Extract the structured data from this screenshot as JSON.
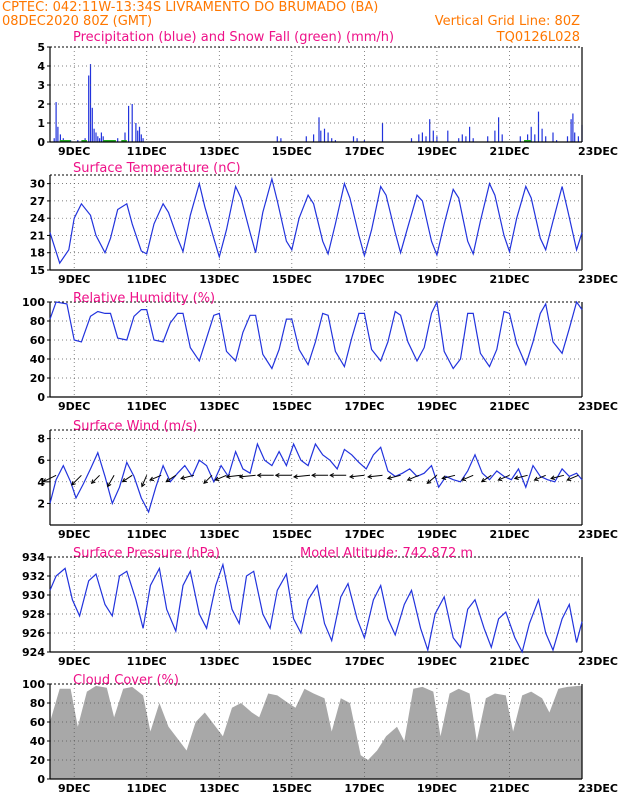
{
  "header": {
    "line1_left": "CPTEC:   042:11W-13:34S  LIVRAMENTO DO BRUMADO (BA)",
    "line2_left": "08DEC2020 80Z (GMT)",
    "line2_right": "Vertical Grid Line: 80Z",
    "line3_right": "TQ0126L028"
  },
  "x_axis": {
    "start_day": 8.333,
    "end_day": 23,
    "tick_days": [
      9,
      11,
      13,
      15,
      17,
      19,
      21,
      23
    ],
    "tick_labels": [
      "9DEC",
      "11DEC",
      "13DEC",
      "15DEC",
      "17DEC",
      "19DEC",
      "21DEC",
      "23DEC"
    ]
  },
  "colors": {
    "series": "#2233dd",
    "snow": "#22aa22",
    "cloud": "#a8a8a8",
    "title": "#ee1188",
    "header": "#ff7700"
  },
  "chart_data": [
    {
      "id": "precip",
      "type": "bar",
      "title": "Precipitation (blue) and Snow Fall (green) (mm/h)",
      "ylim": [
        0,
        5
      ],
      "yticks": [
        0,
        1,
        2,
        3,
        4,
        5
      ],
      "bar_width_days": 0.09,
      "x": [
        8.45,
        8.5,
        8.55,
        8.62,
        8.7,
        8.8,
        8.9,
        9.1,
        9.3,
        9.4,
        9.45,
        9.5,
        9.55,
        9.6,
        9.65,
        9.7,
        9.75,
        9.8,
        9.9,
        10.2,
        10.4,
        10.5,
        10.6,
        10.7,
        10.75,
        10.8,
        10.85,
        10.9,
        14.6,
        14.7,
        15.4,
        15.6,
        15.75,
        15.8,
        15.9,
        16.0,
        16.1,
        16.2,
        16.7,
        16.8,
        17.0,
        17.5,
        18.3,
        18.5,
        18.6,
        18.7,
        18.8,
        18.9,
        19.0,
        19.3,
        19.6,
        19.7,
        19.8,
        19.9,
        20.0,
        20.4,
        20.6,
        20.7,
        20.8,
        21.3,
        21.5,
        21.6,
        21.7,
        21.8,
        21.9,
        22.0,
        22.2,
        22.3,
        22.6,
        22.7,
        22.75,
        22.8,
        22.9,
        23.0
      ],
      "values": [
        0.2,
        2.1,
        0.8,
        0.4,
        0.2,
        0.1,
        0.1,
        0.1,
        0.2,
        3.5,
        4.1,
        1.8,
        0.7,
        0.5,
        0.3,
        0.2,
        0.5,
        0.3,
        0.1,
        0.2,
        0.5,
        1.9,
        2.0,
        1.0,
        0.6,
        0.8,
        0.4,
        0.2,
        0.3,
        0.2,
        0.3,
        0.4,
        1.3,
        0.6,
        0.7,
        0.5,
        0.2,
        0.1,
        0.3,
        0.2,
        0.1,
        1.0,
        0.2,
        0.4,
        0.5,
        0.3,
        1.2,
        0.6,
        0.3,
        0.6,
        0.2,
        0.4,
        0.3,
        0.8,
        0.2,
        0.3,
        0.6,
        1.3,
        0.4,
        0.3,
        0.4,
        0.8,
        0.4,
        1.6,
        0.7,
        0.3,
        0.5,
        0.1,
        0.3,
        1.2,
        1.5,
        0.5,
        0.3,
        0.9
      ],
      "snow_segments": [
        [
          8.6,
          8.9
        ],
        [
          9.2,
          9.35
        ],
        [
          9.8,
          10.15
        ],
        [
          10.3,
          10.45
        ],
        [
          21.4,
          21.6
        ]
      ]
    },
    {
      "id": "temp",
      "type": "line",
      "title": "Surface Temperature (nC)",
      "ylim": [
        15,
        31.5
      ],
      "yticks": [
        15,
        18,
        21,
        24,
        27,
        30
      ],
      "x": [
        8.333,
        8.6,
        8.85,
        9.0,
        9.2,
        9.45,
        9.6,
        9.85,
        10.0,
        10.2,
        10.45,
        10.6,
        10.85,
        11.0,
        11.2,
        11.45,
        11.6,
        11.85,
        12.0,
        12.2,
        12.45,
        12.6,
        12.85,
        13.0,
        13.2,
        13.45,
        13.6,
        13.85,
        14.0,
        14.2,
        14.45,
        14.6,
        14.85,
        15.0,
        15.2,
        15.45,
        15.6,
        15.85,
        16.0,
        16.2,
        16.45,
        16.6,
        16.85,
        17.0,
        17.2,
        17.45,
        17.6,
        17.85,
        18.0,
        18.2,
        18.45,
        18.6,
        18.85,
        19.0,
        19.2,
        19.45,
        19.6,
        19.85,
        20.0,
        20.2,
        20.45,
        20.6,
        20.85,
        21.0,
        21.2,
        21.45,
        21.6,
        21.85,
        22.0,
        22.2,
        22.45,
        22.6,
        22.85,
        23.0
      ],
      "values": [
        21.5,
        16.2,
        18.5,
        24.0,
        26.5,
        24.5,
        21.0,
        18.0,
        20.5,
        25.5,
        26.5,
        23.0,
        18.3,
        17.8,
        23.0,
        26.5,
        25.0,
        20.5,
        18.2,
        24.5,
        30.0,
        26.0,
        20.5,
        17.3,
        22.0,
        29.5,
        27.5,
        21.5,
        18.0,
        25.0,
        30.8,
        27.0,
        20.0,
        18.5,
        24.0,
        28.0,
        26.5,
        20.0,
        17.8,
        23.0,
        30.0,
        27.5,
        21.0,
        17.5,
        22.0,
        29.5,
        28.0,
        21.5,
        18.0,
        22.5,
        28.0,
        27.0,
        20.0,
        17.6,
        23.0,
        29.0,
        27.5,
        20.0,
        17.8,
        23.5,
        30.0,
        28.0,
        21.0,
        18.2,
        24.0,
        29.5,
        27.5,
        20.5,
        18.5,
        23.5,
        29.5,
        25.5,
        18.5,
        21.5
      ]
    },
    {
      "id": "rh",
      "type": "line",
      "title": "Relative Humidity (%)",
      "ylim": [
        0,
        100
      ],
      "yticks": [
        0,
        20,
        40,
        60,
        80,
        100
      ],
      "x": [
        8.333,
        8.5,
        8.8,
        9.0,
        9.2,
        9.45,
        9.65,
        9.85,
        10.0,
        10.2,
        10.45,
        10.65,
        10.85,
        11.0,
        11.2,
        11.45,
        11.65,
        11.85,
        12.0,
        12.2,
        12.45,
        12.65,
        12.85,
        13.0,
        13.2,
        13.45,
        13.65,
        13.85,
        14.0,
        14.2,
        14.45,
        14.65,
        14.85,
        15.0,
        15.2,
        15.45,
        15.65,
        15.85,
        16.0,
        16.2,
        16.45,
        16.65,
        16.85,
        17.0,
        17.2,
        17.45,
        17.65,
        17.85,
        18.0,
        18.2,
        18.45,
        18.65,
        18.85,
        19.0,
        19.2,
        19.45,
        19.65,
        19.85,
        20.0,
        20.2,
        20.45,
        20.65,
        20.85,
        21.0,
        21.2,
        21.45,
        21.65,
        21.85,
        22.0,
        22.2,
        22.45,
        22.65,
        22.85,
        23.0
      ],
      "values": [
        82,
        100,
        98,
        60,
        58,
        85,
        90,
        88,
        88,
        62,
        60,
        85,
        92,
        92,
        60,
        58,
        78,
        88,
        88,
        52,
        38,
        62,
        86,
        88,
        48,
        38,
        68,
        86,
        86,
        45,
        30,
        50,
        82,
        82,
        50,
        34,
        58,
        88,
        86,
        48,
        32,
        62,
        88,
        88,
        50,
        38,
        58,
        90,
        86,
        58,
        38,
        52,
        88,
        100,
        48,
        30,
        40,
        88,
        88,
        46,
        32,
        50,
        90,
        88,
        56,
        34,
        58,
        88,
        98,
        58,
        46,
        72,
        100,
        92
      ]
    },
    {
      "id": "wind",
      "type": "line",
      "title": "Surface Wind (m/s)",
      "ylim": [
        0,
        8.8
      ],
      "yticks": [
        2,
        4,
        6,
        8
      ],
      "x": [
        8.333,
        8.5,
        8.7,
        8.9,
        9.05,
        9.25,
        9.45,
        9.65,
        9.85,
        10.05,
        10.25,
        10.45,
        10.65,
        10.85,
        11.05,
        11.25,
        11.45,
        11.65,
        11.85,
        12.05,
        12.25,
        12.45,
        12.65,
        12.85,
        13.05,
        13.25,
        13.45,
        13.65,
        13.85,
        14.05,
        14.25,
        14.45,
        14.65,
        14.85,
        15.05,
        15.25,
        15.45,
        15.65,
        15.85,
        16.05,
        16.25,
        16.45,
        16.65,
        16.85,
        17.05,
        17.25,
        17.45,
        17.65,
        17.85,
        18.05,
        18.25,
        18.45,
        18.65,
        18.85,
        19.05,
        19.25,
        19.45,
        19.65,
        19.85,
        20.05,
        20.25,
        20.45,
        20.65,
        20.85,
        21.05,
        21.25,
        21.45,
        21.65,
        21.85,
        22.05,
        22.25,
        22.45,
        22.65,
        22.85,
        23.0
      ],
      "values": [
        2.0,
        4.2,
        5.5,
        4.0,
        2.5,
        3.8,
        5.2,
        6.7,
        4.5,
        2.0,
        3.5,
        5.8,
        4.5,
        2.5,
        1.2,
        3.5,
        5.5,
        4.0,
        4.8,
        5.5,
        4.5,
        6.0,
        5.5,
        4.0,
        5.5,
        4.5,
        6.8,
        5.2,
        4.8,
        7.5,
        6.0,
        5.5,
        6.8,
        5.5,
        7.5,
        6.0,
        5.5,
        7.5,
        6.5,
        6.0,
        5.2,
        7.0,
        6.5,
        5.8,
        5.2,
        6.5,
        7.2,
        5.0,
        4.5,
        4.8,
        5.2,
        4.5,
        4.8,
        5.5,
        3.5,
        4.5,
        4.2,
        4.0,
        5.0,
        6.5,
        4.8,
        4.2,
        5.0,
        4.5,
        4.2,
        5.2,
        3.5,
        5.5,
        4.5,
        4.2,
        4.0,
        5.2,
        4.5,
        4.8,
        4.2
      ],
      "vector_x": [
        8.5,
        9.2,
        9.7,
        10.1,
        10.6,
        11.0,
        11.4,
        11.8,
        12.3,
        12.8,
        13.2,
        13.6,
        14.0,
        14.5,
        15.0,
        15.5,
        16.0,
        16.5,
        17.0,
        17.5,
        18.0,
        18.5,
        19.0,
        19.5,
        20.0,
        20.5,
        21.0,
        21.5,
        22.0,
        22.5,
        22.9
      ],
      "vector_u": [
        -0.8,
        -0.6,
        -0.5,
        -0.4,
        -0.6,
        -0.3,
        -0.7,
        -0.6,
        -0.8,
        -0.5,
        -0.7,
        -0.9,
        -1.0,
        -1.0,
        -1.0,
        -1.0,
        -1.0,
        -1.0,
        -0.9,
        -0.9,
        -0.8,
        -0.7,
        -0.6,
        -0.8,
        -0.7,
        -0.6,
        -0.7,
        -0.8,
        -0.7,
        -0.8,
        -0.7
      ],
      "vector_v": [
        -0.4,
        -0.6,
        -0.5,
        -0.7,
        -0.4,
        -0.7,
        -0.3,
        -0.4,
        -0.2,
        -0.5,
        -0.3,
        -0.1,
        -0.1,
        0.0,
        0.0,
        -0.1,
        0.0,
        0.0,
        -0.1,
        -0.1,
        -0.2,
        -0.3,
        -0.5,
        -0.2,
        -0.3,
        -0.4,
        -0.3,
        -0.2,
        -0.3,
        -0.2,
        -0.3
      ]
    },
    {
      "id": "pres",
      "type": "line",
      "title": "Surface Pressure (hPa)",
      "annotation": "Model Altitude: 742.872 m",
      "ylim": [
        924,
        934
      ],
      "yticks": [
        924,
        926,
        928,
        930,
        932,
        934
      ],
      "x": [
        8.333,
        8.5,
        8.75,
        8.95,
        9.15,
        9.4,
        9.6,
        9.85,
        10.05,
        10.25,
        10.45,
        10.7,
        10.9,
        11.1,
        11.35,
        11.55,
        11.8,
        12.0,
        12.2,
        12.45,
        12.65,
        12.9,
        13.1,
        13.35,
        13.55,
        13.75,
        13.95,
        14.2,
        14.4,
        14.6,
        14.85,
        15.05,
        15.25,
        15.45,
        15.7,
        15.9,
        16.1,
        16.35,
        16.55,
        16.8,
        17.0,
        17.25,
        17.45,
        17.65,
        17.85,
        18.1,
        18.3,
        18.55,
        18.75,
        18.95,
        19.2,
        19.45,
        19.65,
        19.85,
        20.05,
        20.3,
        20.5,
        20.7,
        20.9,
        21.15,
        21.35,
        21.55,
        21.8,
        22.0,
        22.2,
        22.45,
        22.65,
        22.85,
        23.0
      ],
      "values": [
        930.5,
        932.0,
        932.8,
        929.5,
        927.8,
        931.5,
        932.2,
        929.0,
        927.8,
        932.0,
        932.5,
        929.5,
        926.5,
        931.0,
        932.8,
        928.5,
        926.2,
        931.0,
        932.5,
        928.0,
        926.5,
        931.0,
        933.2,
        928.5,
        927.0,
        932.0,
        932.5,
        928.0,
        926.5,
        930.5,
        932.2,
        927.5,
        926.0,
        929.5,
        931.0,
        927.0,
        925.2,
        929.8,
        931.2,
        927.5,
        925.5,
        929.5,
        931.0,
        927.5,
        925.8,
        929.0,
        930.5,
        926.5,
        924.2,
        928.0,
        929.8,
        925.5,
        924.5,
        928.5,
        929.5,
        926.5,
        924.5,
        927.5,
        928.2,
        925.5,
        924.0,
        927.0,
        929.5,
        926.0,
        924.2,
        927.5,
        929.0,
        925.0,
        927.2
      ]
    },
    {
      "id": "cloud",
      "type": "area",
      "title": "Cloud Cover (%)",
      "ylim": [
        0,
        100
      ],
      "yticks": [
        0,
        20,
        40,
        60,
        80,
        100
      ],
      "x": [
        8.333,
        8.6,
        8.9,
        9.1,
        9.35,
        9.6,
        9.9,
        10.1,
        10.35,
        10.6,
        10.9,
        11.1,
        11.35,
        11.6,
        11.9,
        12.1,
        12.35,
        12.6,
        12.9,
        13.1,
        13.35,
        13.6,
        13.9,
        14.1,
        14.35,
        14.6,
        14.9,
        15.1,
        15.35,
        15.6,
        15.9,
        16.1,
        16.35,
        16.6,
        16.9,
        17.1,
        17.35,
        17.6,
        17.9,
        18.1,
        18.35,
        18.6,
        18.9,
        19.1,
        19.35,
        19.6,
        19.9,
        20.1,
        20.35,
        20.6,
        20.9,
        21.1,
        21.35,
        21.6,
        21.9,
        22.1,
        22.35,
        22.6,
        22.9,
        23.0
      ],
      "values": [
        60,
        95,
        95,
        55,
        92,
        98,
        96,
        65,
        95,
        97,
        88,
        50,
        80,
        55,
        40,
        30,
        60,
        70,
        55,
        45,
        75,
        80,
        70,
        65,
        90,
        88,
        80,
        75,
        95,
        90,
        85,
        50,
        85,
        80,
        25,
        20,
        30,
        45,
        55,
        40,
        95,
        97,
        92,
        45,
        90,
        95,
        90,
        40,
        85,
        90,
        88,
        50,
        88,
        92,
        85,
        70,
        95,
        97,
        98,
        98
      ]
    }
  ]
}
